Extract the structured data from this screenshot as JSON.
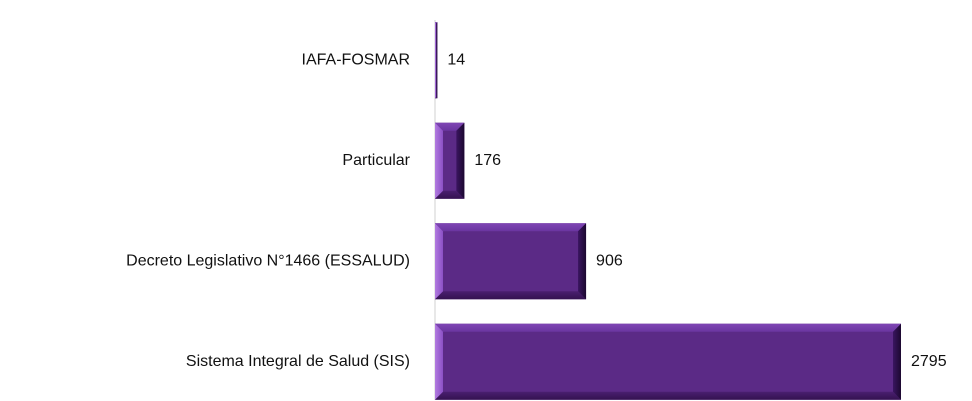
{
  "chart_data": {
    "type": "hbar",
    "categories": [
      "IAFA-FOSMAR",
      "Particular",
      "Decreto Legislativo N°1466 (ESSALUD)",
      "Sistema Integral de Salud (SIS)"
    ],
    "values": [
      14,
      176,
      906,
      2795
    ],
    "color": "#5b2a86"
  }
}
